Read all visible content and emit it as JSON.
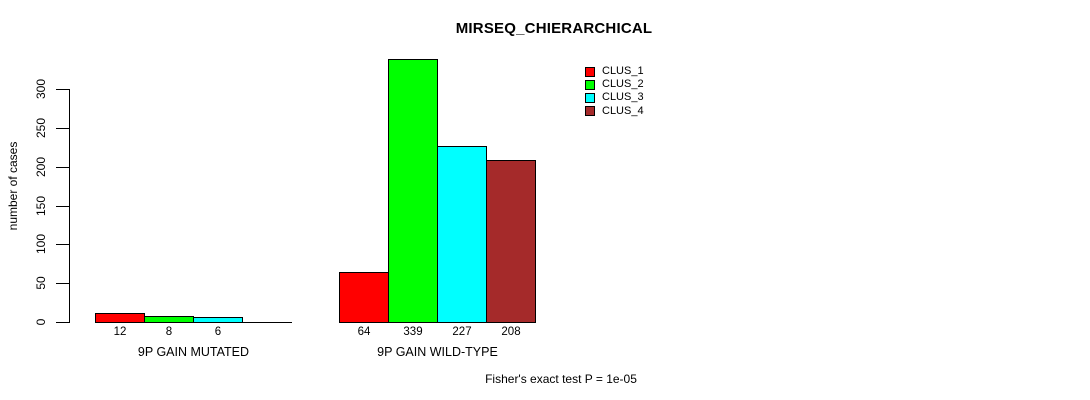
{
  "chart_data": {
    "type": "bar",
    "title": "MIRSEQ_CHIERARCHICAL",
    "xlabel": "",
    "ylabel": "number of cases",
    "categories": [
      "9P GAIN MUTATED",
      "9P GAIN WILD-TYPE"
    ],
    "series": [
      {
        "name": "CLUS_1",
        "color": "#ff0000",
        "values": [
          12,
          64
        ]
      },
      {
        "name": "CLUS_2",
        "color": "#00ff00",
        "values": [
          8,
          339
        ]
      },
      {
        "name": "CLUS_3",
        "color": "#00ffff",
        "values": [
          6,
          227
        ]
      },
      {
        "name": "CLUS_4",
        "color": "#a52a2a",
        "values": [
          0,
          208
        ]
      }
    ],
    "bar_value_labels": [
      [
        "12",
        "8",
        "6",
        ""
      ],
      [
        "64",
        "339",
        "227",
        "208"
      ]
    ],
    "yticks": [
      0,
      50,
      100,
      150,
      200,
      250,
      300
    ],
    "ylim": [
      0,
      339
    ],
    "grid": false,
    "legend_position": "top-right",
    "annotation": "Fisher's exact test P = 1e-05"
  }
}
